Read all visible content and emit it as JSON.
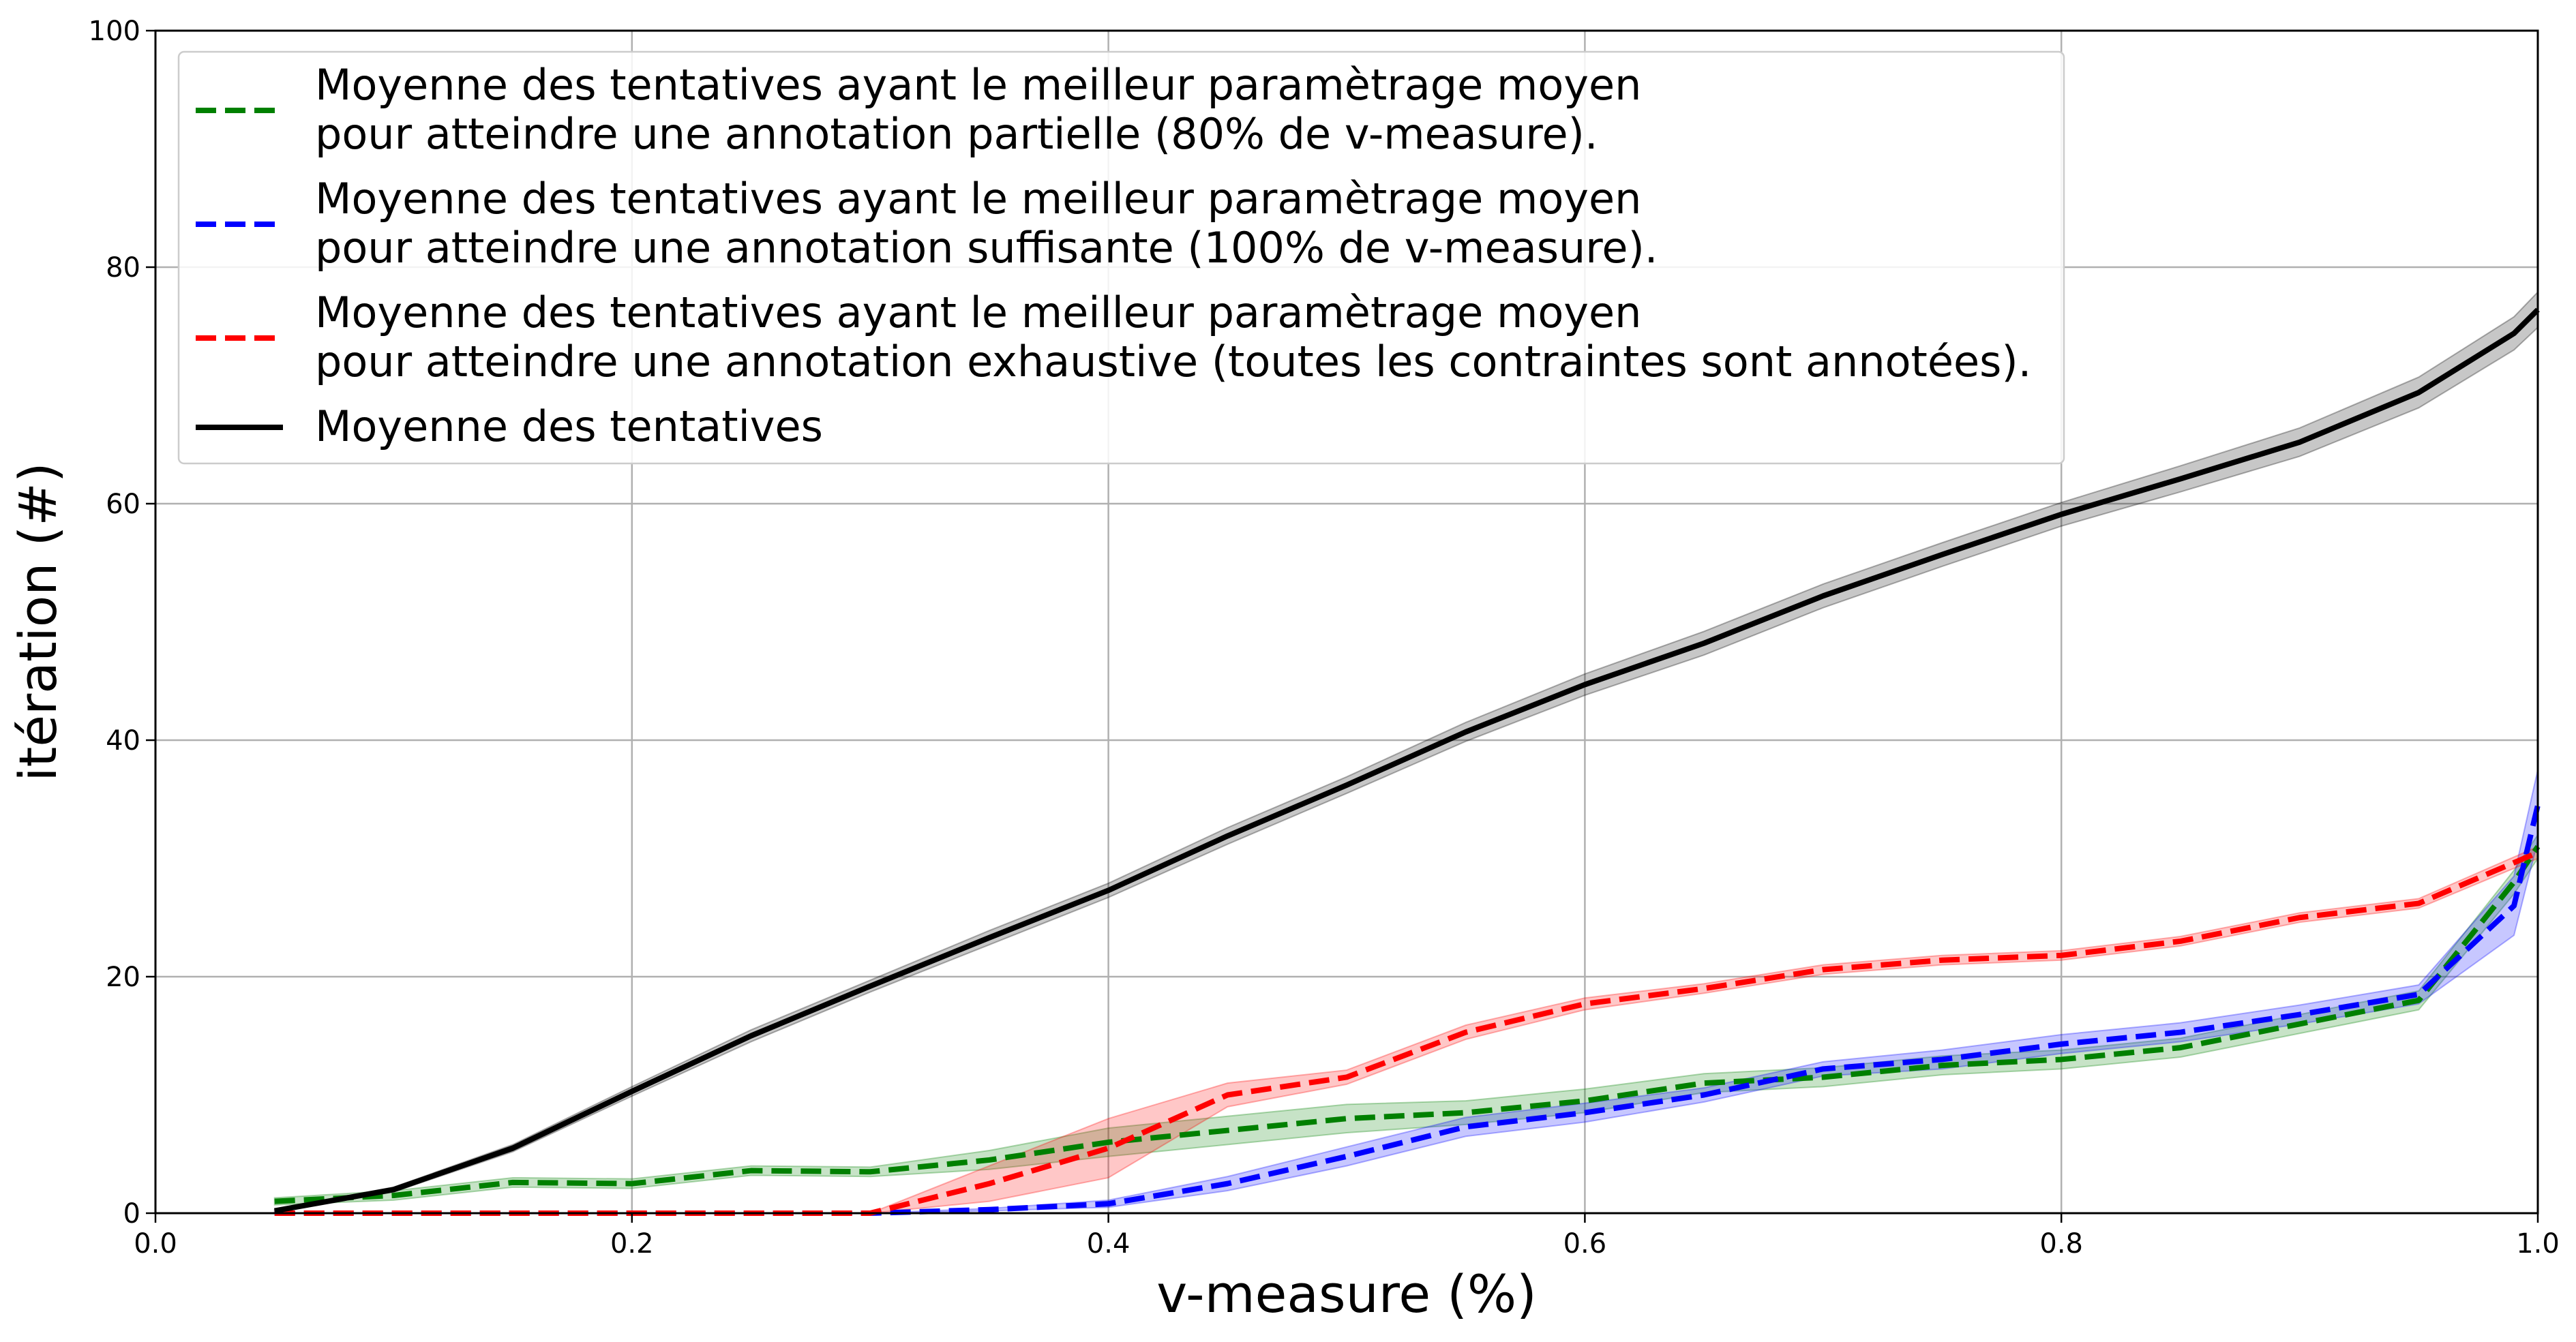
{
  "chart_data": {
    "type": "line",
    "xlabel": "v-measure (%)",
    "ylabel": "itération (#)",
    "xlim": [
      0.0,
      1.0
    ],
    "ylim": [
      0,
      100
    ],
    "x_ticks": [
      "0.0",
      "0.2",
      "0.4",
      "0.6",
      "0.8",
      "1.0"
    ],
    "y_ticks": [
      "0",
      "20",
      "40",
      "60",
      "80",
      "100"
    ],
    "grid": true,
    "legend_position": "top-left",
    "series": [
      {
        "name": "Moyenne des tentatives ayant le meilleur paramètrage moyen pour atteindre une annotation partielle (80% de v-measure).",
        "legend_lines": [
          "Moyenne des tentatives ayant le meilleur paramètrage moyen",
          "pour atteindre une annotation partielle (80% de v-measure)."
        ],
        "color": "#008000",
        "style": "dashed",
        "x": [
          0.05,
          0.1,
          0.15,
          0.2,
          0.25,
          0.3,
          0.35,
          0.4,
          0.45,
          0.5,
          0.55,
          0.6,
          0.65,
          0.7,
          0.75,
          0.8,
          0.85,
          0.9,
          0.95,
          0.99,
          1.0
        ],
        "y": [
          1.0,
          1.5,
          2.6,
          2.5,
          3.6,
          3.5,
          4.5,
          6.0,
          7.0,
          8.0,
          8.5,
          9.5,
          11.0,
          11.5,
          12.5,
          13.0,
          14.0,
          16.0,
          18.0,
          28.0,
          31.0
        ],
        "band": [
          0.3,
          0.4,
          0.4,
          0.4,
          0.4,
          0.4,
          0.8,
          1.2,
          1.2,
          1.2,
          1.0,
          1.0,
          0.8,
          0.8,
          0.8,
          0.8,
          0.8,
          0.8,
          0.8,
          1.0,
          1.0
        ]
      },
      {
        "name": "Moyenne des tentatives ayant le meilleur paramètrage moyen pour atteindre une annotation suffisante (100% de v-measure).",
        "legend_lines": [
          "Moyenne des tentatives ayant le meilleur paramètrage moyen",
          "pour atteindre une annotation suffisante (100% de v-measure)."
        ],
        "color": "#0000ff",
        "style": "dashed",
        "x": [
          0.05,
          0.1,
          0.15,
          0.2,
          0.25,
          0.3,
          0.35,
          0.4,
          0.45,
          0.5,
          0.55,
          0.6,
          0.65,
          0.7,
          0.75,
          0.8,
          0.85,
          0.9,
          0.95,
          0.99,
          1.0
        ],
        "y": [
          0,
          0,
          0,
          0,
          0,
          0,
          0.3,
          0.8,
          2.5,
          4.8,
          7.3,
          8.5,
          10.0,
          12.2,
          13.0,
          14.3,
          15.3,
          16.8,
          18.5,
          26.0,
          34.5
        ],
        "band": [
          0,
          0,
          0,
          0,
          0,
          0,
          0.1,
          0.3,
          0.6,
          0.8,
          0.8,
          0.8,
          0.6,
          0.6,
          0.8,
          0.8,
          0.8,
          0.8,
          0.8,
          2.5,
          3.0
        ]
      },
      {
        "name": "Moyenne des tentatives ayant le meilleur paramètrage moyen pour atteindre une annotation exhaustive (toutes les contraintes sont annotées).",
        "legend_lines": [
          "Moyenne des tentatives ayant le meilleur paramètrage moyen",
          "pour atteindre une annotation exhaustive (toutes les contraintes sont annotées)."
        ],
        "color": "#ff0000",
        "style": "dashed",
        "x": [
          0.05,
          0.1,
          0.15,
          0.2,
          0.25,
          0.3,
          0.35,
          0.4,
          0.45,
          0.5,
          0.55,
          0.6,
          0.65,
          0.7,
          0.75,
          0.8,
          0.85,
          0.9,
          0.95,
          1.0
        ],
        "y": [
          0,
          0,
          0,
          0,
          0,
          0,
          2.5,
          5.5,
          10.0,
          11.5,
          15.3,
          17.7,
          19.0,
          20.6,
          21.4,
          21.8,
          23.0,
          25.0,
          26.2,
          30.5
        ],
        "band": [
          0,
          0,
          0,
          0,
          0,
          0,
          1.5,
          2.5,
          1.0,
          0.6,
          0.6,
          0.5,
          0.4,
          0.4,
          0.4,
          0.4,
          0.4,
          0.4,
          0.4,
          0.5
        ]
      },
      {
        "name": "Moyenne des tentatives",
        "legend_lines": [
          "Moyenne des tentatives"
        ],
        "color": "#000000",
        "style": "solid",
        "x": [
          0.05,
          0.1,
          0.15,
          0.2,
          0.25,
          0.3,
          0.35,
          0.4,
          0.45,
          0.5,
          0.55,
          0.6,
          0.65,
          0.7,
          0.75,
          0.8,
          0.85,
          0.9,
          0.95,
          0.99,
          1.0
        ],
        "y": [
          0.2,
          2.0,
          5.5,
          10.3,
          15.0,
          19.2,
          23.3,
          27.3,
          31.9,
          36.2,
          40.7,
          44.7,
          48.2,
          52.2,
          55.7,
          59.1,
          62.1,
          65.2,
          69.4,
          74.4,
          76.4
        ],
        "band": [
          0.1,
          0.2,
          0.3,
          0.4,
          0.5,
          0.5,
          0.6,
          0.6,
          0.7,
          0.7,
          0.8,
          0.9,
          1.0,
          1.0,
          1.0,
          1.0,
          1.1,
          1.2,
          1.3,
          1.4,
          1.5
        ]
      }
    ]
  }
}
